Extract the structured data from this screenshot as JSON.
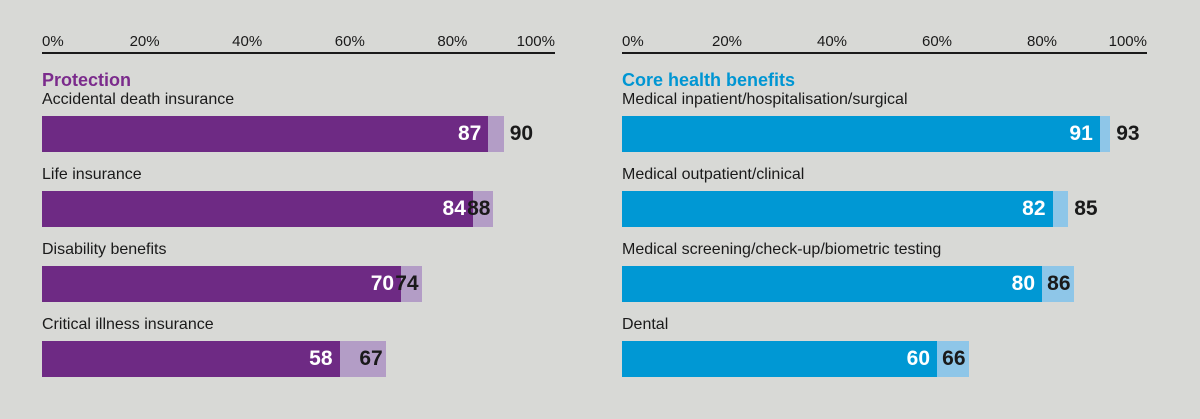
{
  "chart_data": [
    {
      "type": "bar",
      "orientation": "horizontal",
      "title": "Protection",
      "categories": [
        "Accidental death insurance",
        "Life insurance",
        "Disability benefits",
        "Critical illness insurance"
      ],
      "series": [
        {
          "name": "primary (dark segment)",
          "values": [
            87,
            84,
            70,
            58
          ]
        },
        {
          "name": "secondary (light segment)",
          "values": [
            90,
            88,
            74,
            67
          ]
        }
      ],
      "xlim": [
        0,
        100
      ],
      "tick_labels": [
        "0%",
        "20%",
        "40%",
        "60%",
        "80%",
        "100%"
      ],
      "grid": false,
      "legend": "none"
    },
    {
      "type": "bar",
      "orientation": "horizontal",
      "title": "Core health benefits",
      "categories": [
        "Medical inpatient/hospitalisation/surgical",
        "Medical outpatient/clinical",
        "Medical screening/check-up/biometric testing",
        "Dental"
      ],
      "series": [
        {
          "name": "primary (dark segment)",
          "values": [
            91,
            82,
            80,
            60
          ]
        },
        {
          "name": "secondary (light segment)",
          "values": [
            93,
            85,
            86,
            66
          ]
        }
      ],
      "xlim": [
        0,
        100
      ],
      "tick_labels": [
        "0%",
        "20%",
        "40%",
        "60%",
        "80%",
        "100%"
      ],
      "grid": false,
      "legend": "none"
    }
  ],
  "axis": {
    "ticks": [
      "0%",
      "20%",
      "40%",
      "60%",
      "80%",
      "100%"
    ]
  },
  "panels": [
    {
      "title": "Protection",
      "title_color": "#7b2b8c",
      "bar_color": "#6e2a84",
      "bar_color_light": "#b39dc6",
      "rows": [
        {
          "label": "Accidental death insurance",
          "primary": 87,
          "secondary": 90
        },
        {
          "label": "Life insurance",
          "primary": 84,
          "secondary": 88
        },
        {
          "label": "Disability benefits",
          "primary": 70,
          "secondary": 74
        },
        {
          "label": "Critical illness insurance",
          "primary": 58,
          "secondary": 67
        }
      ]
    },
    {
      "title": "Core health benefits",
      "title_color": "#0096d3",
      "bar_color": "#0098d4",
      "bar_color_light": "#8ec6e8",
      "rows": [
        {
          "label": "Medical inpatient/hospitalisation/surgical",
          "primary": 91,
          "secondary": 93
        },
        {
          "label": "Medical outpatient/clinical",
          "primary": 82,
          "secondary": 85
        },
        {
          "label": "Medical screening/check-up/biometric testing",
          "primary": 80,
          "secondary": 86
        },
        {
          "label": "Dental",
          "primary": 60,
          "secondary": 66
        }
      ]
    }
  ],
  "colors": {
    "background": "#d8d9d6",
    "axis_line": "#1a1a1a",
    "text": "#1a1a1a",
    "value_on_bar": "#ffffff"
  }
}
